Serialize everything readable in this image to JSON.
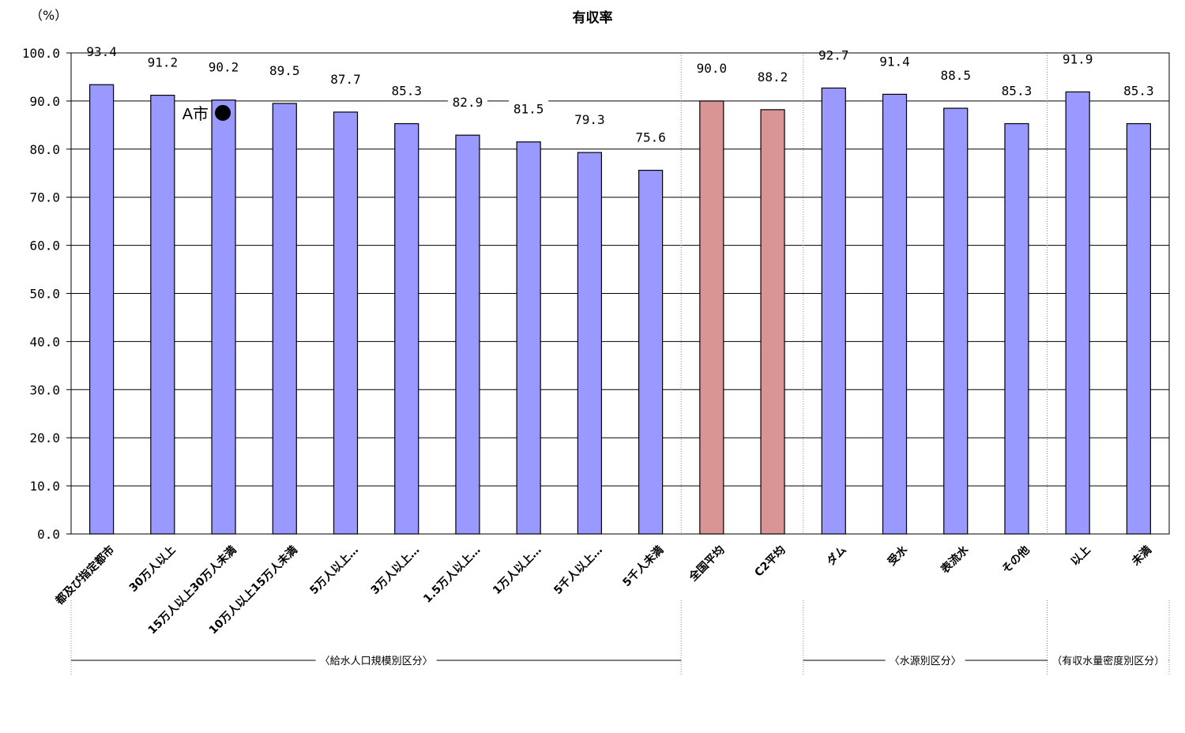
{
  "chart_data": {
    "type": "bar",
    "title": "有収率",
    "ylabel": "（%）",
    "ylim": [
      0,
      100
    ],
    "yticks": [
      "0.0",
      "10.0",
      "20.0",
      "30.0",
      "40.0",
      "50.0",
      "60.0",
      "70.0",
      "80.0",
      "90.0",
      "100.0"
    ],
    "grid": true,
    "categories": [
      "都及び指定都市",
      "30万人以上",
      "15万人以上30万人未満",
      "10万人以上15万人未満",
      "5万人以上…",
      "3万人以上…",
      "1.5万人以上…",
      "1万人以上…",
      "5千人以上…",
      "5千人未満",
      "全国平均",
      "C2平均",
      "ダム",
      "受水",
      "表流水",
      "その他",
      "以上",
      "未満"
    ],
    "values": [
      93.4,
      91.2,
      90.2,
      89.5,
      87.7,
      85.3,
      82.9,
      81.5,
      79.3,
      75.6,
      90.0,
      88.2,
      92.7,
      91.4,
      88.5,
      85.3,
      91.9,
      85.3
    ],
    "value_labels": [
      "93.4",
      "91.2",
      "90.2",
      "89.5",
      "87.7",
      "85.3",
      "82.9",
      "81.5",
      "79.3",
      "75.6",
      "90.0",
      "88.2",
      "92.7",
      "91.4",
      "88.5",
      "85.3",
      "91.9",
      "85.3"
    ],
    "bar_kinds": [
      "size",
      "size",
      "size",
      "size",
      "size",
      "size",
      "size",
      "size",
      "size",
      "size",
      "average",
      "average",
      "source",
      "source",
      "source",
      "source",
      "density",
      "density"
    ],
    "colors": {
      "default": "#9999ff",
      "average": "#d99594",
      "border": "#000000",
      "grid": "#000000"
    },
    "marker": {
      "label": "A市",
      "value": 90.0,
      "category": "15万人以上30万人未満"
    },
    "groups": [
      {
        "label": "〈給水人口規模別区分〉",
        "first": 0,
        "last": 9
      },
      {
        "label": "〈水源別区分〉",
        "first": 12,
        "last": 15
      },
      {
        "label": "（有収水量密度別区分）",
        "first": 16,
        "last": 17
      }
    ]
  }
}
